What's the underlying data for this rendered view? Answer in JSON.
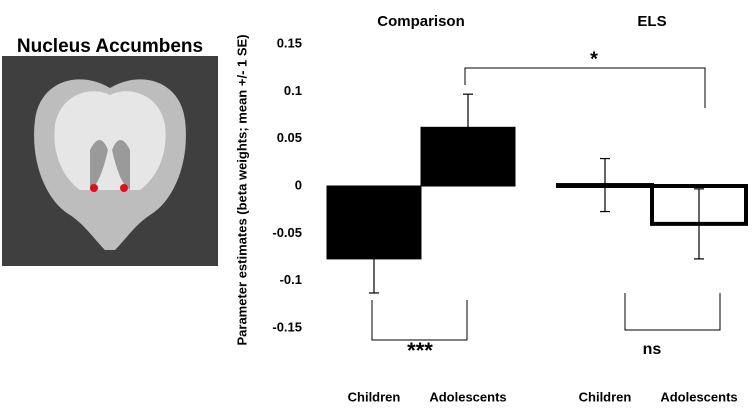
{
  "image_title": "Nucleus Accumbens",
  "chart_data": {
    "type": "bar",
    "ylabel": "Parameter estimates (beta weights; mean +/- 1 SE)",
    "categories": [
      "Children",
      "Adolescents"
    ],
    "series": [
      {
        "name": "Comparison",
        "color": "#000000",
        "values": [
          -0.077,
          0.062
        ],
        "errors": [
          0.036,
          0.035
        ]
      },
      {
        "name": "ELS",
        "color": "#ffffff",
        "values": [
          0.001,
          -0.04
        ],
        "errors": [
          0.028,
          0.037
        ]
      }
    ],
    "ylim": [
      -0.15,
      0.15
    ],
    "yticks": [
      0.15,
      0.1,
      0.05,
      0,
      -0.05,
      -0.1,
      -0.15
    ],
    "annotations": [
      "*",
      "***",
      "ns"
    ]
  }
}
